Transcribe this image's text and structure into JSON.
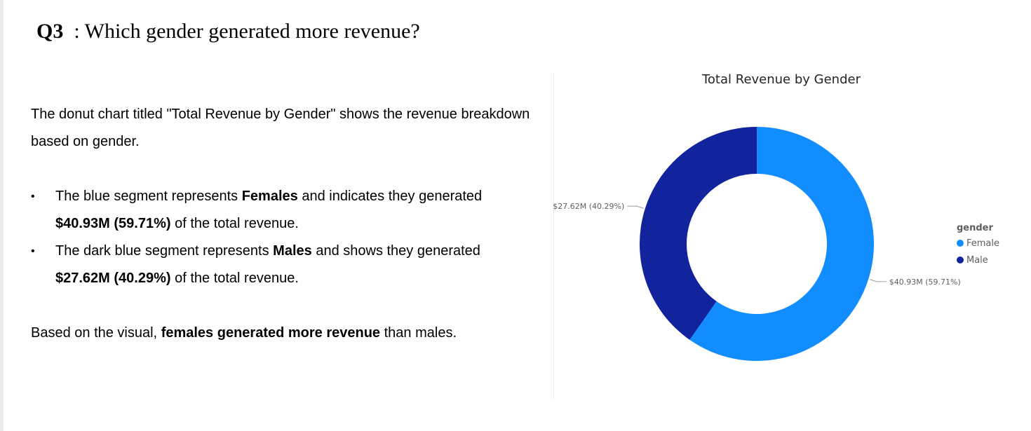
{
  "question": {
    "number": "Q3",
    "text": ": Which gender generated more revenue?"
  },
  "body": {
    "intro": "The donut chart titled \"Total Revenue by Gender\" shows the revenue breakdown based on gender.",
    "bullets": [
      {
        "pre": "The blue segment represents ",
        "bold1": "Females",
        "mid": " and indicates they generated ",
        "bold2": "$40.93M (59.71%)",
        "post": " of the total revenue."
      },
      {
        "pre": "The dark blue segment represents ",
        "bold1": "Males",
        "mid": " and shows they generated ",
        "bold2": "$27.62M (40.29%)",
        "post": " of the total revenue."
      }
    ],
    "conclusion": {
      "pre": "Based on the visual, ",
      "bold": "females generated more revenue",
      "post": " than males."
    }
  },
  "bullet_glyph": "•",
  "chart_data": {
    "type": "pie",
    "title": "Total Revenue by Gender",
    "donut": true,
    "legend_title": "gender",
    "legend_position": "right",
    "slices": [
      {
        "name": "Female",
        "value": 40.93,
        "percent": 59.71,
        "label": "$40.93M (59.71%)",
        "color": "#118dff"
      },
      {
        "name": "Male",
        "value": 27.62,
        "percent": 40.29,
        "label": "$27.62M (40.29%)",
        "color": "#12239e"
      }
    ]
  }
}
